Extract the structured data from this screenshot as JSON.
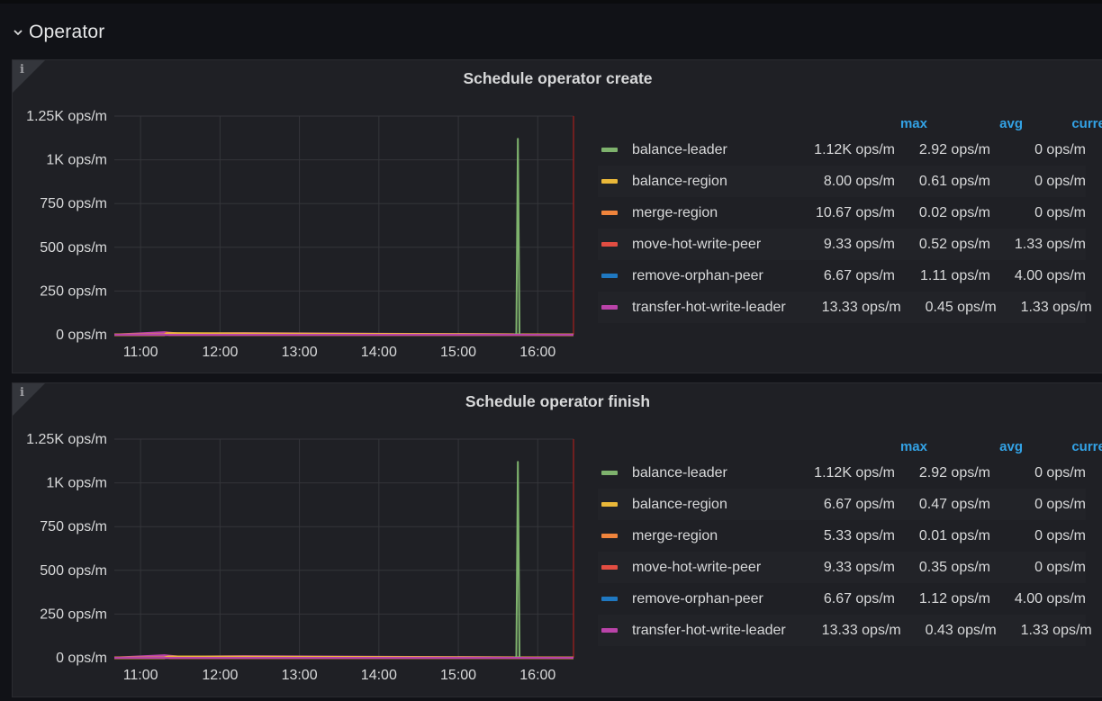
{
  "row": {
    "title": "Operator"
  },
  "legend_headers": {
    "max": "max",
    "avg": "avg",
    "current": "current"
  },
  "colors": {
    "balance-leader": "#7eb26d",
    "balance-region": "#eab839",
    "merge-region": "#ef843c",
    "move-hot-write-peer": "#e24d42",
    "remove-orphan-peer": "#1f78c1",
    "transfer-hot-write-leader": "#ba43a9",
    "threshold": "#8a1f1f"
  },
  "panels": [
    {
      "title": "Schedule operator create",
      "info_icon": "info-icon",
      "legend": [
        {
          "name": "balance-leader",
          "max": "1.12K ops/m",
          "avg": "2.92 ops/m",
          "current": "0 ops/m"
        },
        {
          "name": "balance-region",
          "max": "8.00 ops/m",
          "avg": "0.61 ops/m",
          "current": "0 ops/m"
        },
        {
          "name": "merge-region",
          "max": "10.67 ops/m",
          "avg": "0.02 ops/m",
          "current": "0 ops/m"
        },
        {
          "name": "move-hot-write-peer",
          "max": "9.33 ops/m",
          "avg": "0.52 ops/m",
          "current": "1.33 ops/m"
        },
        {
          "name": "remove-orphan-peer",
          "max": "6.67 ops/m",
          "avg": "1.11 ops/m",
          "current": "4.00 ops/m"
        },
        {
          "name": "transfer-hot-write-leader",
          "max": "13.33 ops/m",
          "avg": "0.45 ops/m",
          "current": "1.33 ops/m"
        }
      ]
    },
    {
      "title": "Schedule operator finish",
      "info_icon": "info-icon",
      "legend": [
        {
          "name": "balance-leader",
          "max": "1.12K ops/m",
          "avg": "2.92 ops/m",
          "current": "0 ops/m"
        },
        {
          "name": "balance-region",
          "max": "6.67 ops/m",
          "avg": "0.47 ops/m",
          "current": "0 ops/m"
        },
        {
          "name": "merge-region",
          "max": "5.33 ops/m",
          "avg": "0.01 ops/m",
          "current": "0 ops/m"
        },
        {
          "name": "move-hot-write-peer",
          "max": "9.33 ops/m",
          "avg": "0.35 ops/m",
          "current": "0 ops/m"
        },
        {
          "name": "remove-orphan-peer",
          "max": "6.67 ops/m",
          "avg": "1.12 ops/m",
          "current": "4.00 ops/m"
        },
        {
          "name": "transfer-hot-write-leader",
          "max": "13.33 ops/m",
          "avg": "0.43 ops/m",
          "current": "1.33 ops/m"
        }
      ]
    }
  ],
  "chart_data": [
    {
      "type": "line",
      "title": "Schedule operator create",
      "x_ticks": [
        "11:00",
        "12:00",
        "13:00",
        "14:00",
        "15:00",
        "16:00"
      ],
      "y_ticks": [
        "0 ops/m",
        "250 ops/m",
        "500 ops/m",
        "750 ops/m",
        "1K ops/m",
        "1.25K ops/m"
      ],
      "y_tick_values": [
        0,
        250,
        500,
        750,
        1000,
        1250
      ],
      "x_range_hours": [
        10.67,
        16.45
      ],
      "ylim": [
        0,
        1250
      ],
      "grid": true,
      "threshold_marker_x_hours": 16.45,
      "series": [
        {
          "name": "balance-leader",
          "x_hours": [
            10.67,
            15.7,
            15.73,
            15.75,
            15.77,
            15.8,
            16.45
          ],
          "values": [
            0,
            0,
            5,
            1120,
            5,
            0,
            0
          ]
        },
        {
          "name": "balance-region",
          "x_hours": [
            10.67,
            11.3,
            11.35,
            16.45
          ],
          "values": [
            0,
            0,
            8,
            0
          ]
        },
        {
          "name": "merge-region",
          "x_hours": [
            10.67,
            11.3,
            11.33,
            11.36,
            16.45
          ],
          "values": [
            0,
            0,
            10.67,
            0,
            0
          ]
        },
        {
          "name": "move-hot-write-peer",
          "x_hours": [
            10.67,
            16.45
          ],
          "values": [
            0,
            0
          ]
        },
        {
          "name": "remove-orphan-peer",
          "x_hours": [
            10.67,
            16.45
          ],
          "values": [
            0,
            0
          ]
        },
        {
          "name": "transfer-hot-write-leader",
          "x_hours": [
            10.67,
            11.3,
            11.5,
            12.3,
            16.45
          ],
          "values": [
            0,
            13.33,
            5,
            8,
            0
          ]
        }
      ]
    },
    {
      "type": "line",
      "title": "Schedule operator finish",
      "x_ticks": [
        "11:00",
        "12:00",
        "13:00",
        "14:00",
        "15:00",
        "16:00"
      ],
      "y_ticks": [
        "0 ops/m",
        "250 ops/m",
        "500 ops/m",
        "750 ops/m",
        "1K ops/m",
        "1.25K ops/m"
      ],
      "y_tick_values": [
        0,
        250,
        500,
        750,
        1000,
        1250
      ],
      "x_range_hours": [
        10.67,
        16.45
      ],
      "ylim": [
        0,
        1250
      ],
      "grid": true,
      "threshold_marker_x_hours": 16.45,
      "series": [
        {
          "name": "balance-leader",
          "x_hours": [
            10.67,
            15.7,
            15.73,
            15.75,
            15.77,
            15.8,
            16.45
          ],
          "values": [
            0,
            0,
            5,
            1120,
            5,
            0,
            0
          ]
        },
        {
          "name": "balance-region",
          "x_hours": [
            10.67,
            11.3,
            11.35,
            16.45
          ],
          "values": [
            0,
            0,
            6.67,
            0
          ]
        },
        {
          "name": "merge-region",
          "x_hours": [
            10.67,
            11.3,
            11.33,
            11.36,
            16.45
          ],
          "values": [
            0,
            0,
            5.33,
            0,
            0
          ]
        },
        {
          "name": "move-hot-write-peer",
          "x_hours": [
            10.67,
            16.45
          ],
          "values": [
            0,
            0
          ]
        },
        {
          "name": "remove-orphan-peer",
          "x_hours": [
            10.67,
            16.45
          ],
          "values": [
            0,
            0
          ]
        },
        {
          "name": "transfer-hot-write-leader",
          "x_hours": [
            10.67,
            11.3,
            11.5,
            12.3,
            16.45
          ],
          "values": [
            0,
            13.33,
            5,
            8,
            0
          ]
        }
      ]
    }
  ]
}
